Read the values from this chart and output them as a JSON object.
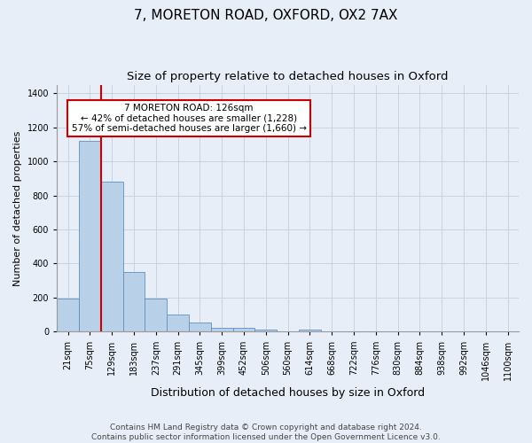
{
  "title1": "7, MORETON ROAD, OXFORD, OX2 7AX",
  "title2": "Size of property relative to detached houses in Oxford",
  "xlabel": "Distribution of detached houses by size in Oxford",
  "ylabel": "Number of detached properties",
  "footer1": "Contains HM Land Registry data © Crown copyright and database right 2024.",
  "footer2": "Contains public sector information licensed under the Open Government Licence v3.0.",
  "bar_labels": [
    "21sqm",
    "75sqm",
    "129sqm",
    "183sqm",
    "237sqm",
    "291sqm",
    "345sqm",
    "399sqm",
    "452sqm",
    "506sqm",
    "560sqm",
    "614sqm",
    "668sqm",
    "722sqm",
    "776sqm",
    "830sqm",
    "884sqm",
    "938sqm",
    "992sqm",
    "1046sqm",
    "1100sqm"
  ],
  "bar_values": [
    197,
    1120,
    880,
    350,
    193,
    100,
    53,
    23,
    22,
    15,
    0,
    14,
    0,
    0,
    0,
    0,
    0,
    0,
    0,
    0,
    0
  ],
  "bar_color": "#b8d0e8",
  "bar_edge_color": "#6090c0",
  "grid_color": "#c8d4e4",
  "background_color": "#e8eef8",
  "annotation_text": "7 MORETON ROAD: 126sqm\n← 42% of detached houses are smaller (1,228)\n57% of semi-detached houses are larger (1,660) →",
  "annotation_box_color": "#ffffff",
  "annotation_edge_color": "#cc0000",
  "vline_color": "#cc0000",
  "vline_x_index": 2,
  "ylim": [
    0,
    1450
  ],
  "yticks": [
    0,
    200,
    400,
    600,
    800,
    1000,
    1200,
    1400
  ],
  "title1_fontsize": 11,
  "title2_fontsize": 9.5,
  "xlabel_fontsize": 9,
  "ylabel_fontsize": 8,
  "tick_fontsize": 7,
  "footer_fontsize": 6.5,
  "annot_fontsize": 7.5
}
